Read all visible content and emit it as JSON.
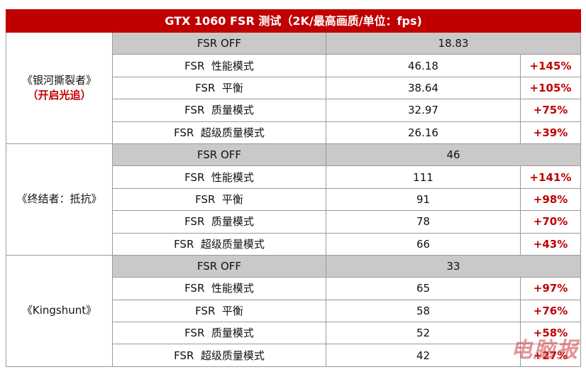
{
  "title": "GTX 1060 FSR 测试（2K/最高画质/单位：fps)",
  "games": [
    {
      "name": "《银河撕裂者》",
      "subtitle": "（开启光追）",
      "rows": [
        {
          "mode": "FSR OFF",
          "fps": "18.83",
          "gain": ""
        },
        {
          "mode": "FSR  性能模式",
          "fps": "46.18",
          "gain": "+145%"
        },
        {
          "mode": "FSR  平衡",
          "fps": "38.64",
          "gain": "+105%"
        },
        {
          "mode": "FSR  质量模式",
          "fps": "32.97",
          "gain": "+75%"
        },
        {
          "mode": "FSR  超级质量模式",
          "fps": "26.16",
          "gain": "+39%"
        }
      ]
    },
    {
      "name": "《终结者：抵抗》",
      "subtitle": "",
      "rows": [
        {
          "mode": "FSR OFF",
          "fps": "46",
          "gain": ""
        },
        {
          "mode": "FSR  性能模式",
          "fps": "111",
          "gain": "+141%"
        },
        {
          "mode": "FSR  平衡",
          "fps": "91",
          "gain": "+98%"
        },
        {
          "mode": "FSR  质量模式",
          "fps": "78",
          "gain": "+70%"
        },
        {
          "mode": "FSR  超级质量模式",
          "fps": "66",
          "gain": "+43%"
        }
      ]
    },
    {
      "name": "《Kingshunt》",
      "subtitle": "",
      "rows": [
        {
          "mode": "FSR OFF",
          "fps": "33",
          "gain": ""
        },
        {
          "mode": "FSR  性能模式",
          "fps": "65",
          "gain": "+97%"
        },
        {
          "mode": "FSR  平衡",
          "fps": "58",
          "gain": "+76%"
        },
        {
          "mode": "FSR  质量模式",
          "fps": "52",
          "gain": "+58%"
        },
        {
          "mode": "FSR  超级质量模式",
          "fps": "42",
          "gain": "+27%"
        }
      ]
    }
  ],
  "watermark": "电脑报",
  "colors": {
    "title_bg": "#c00000",
    "off_row_bg": "#c9c9c9",
    "gain_text": "#c00000",
    "border": "#9a9a9a"
  }
}
